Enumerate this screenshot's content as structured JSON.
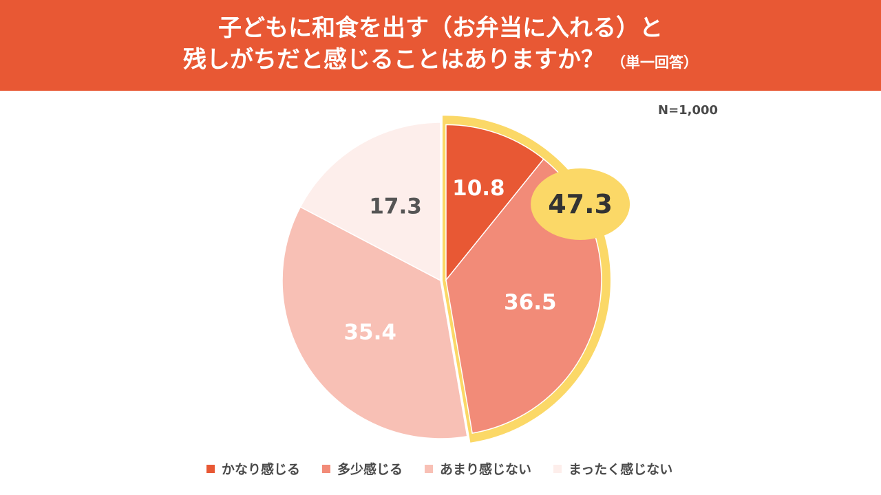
{
  "title": {
    "line1": "子どもに和食を出す（お弁当に入れる）と",
    "line2": "残しがちだと感じることはありますか？",
    "note": "（単一回答）"
  },
  "n_label": "N=1,000",
  "chart_data": {
    "type": "pie",
    "unit": "%",
    "slices": [
      {
        "label": "かなり感じる",
        "value": 10.8,
        "display": "10.8",
        "color": "#e85834",
        "text_color": "#ffffff"
      },
      {
        "label": "多少感じる",
        "value": 36.5,
        "display": "36.5",
        "color": "#f28b78",
        "text_color": "#ffffff"
      },
      {
        "label": "あまり感じない",
        "value": 35.4,
        "display": "35.4",
        "color": "#f8c0b5",
        "text_color": "#ffffff"
      },
      {
        "label": "まったく感じない",
        "value": 17.3,
        "display": "17.3",
        "color": "#fdeeeb",
        "text_color": "#555555"
      }
    ],
    "highlight": {
      "slices": [
        "かなり感じる",
        "多少感じる"
      ],
      "total": 47.3,
      "display": "47.3",
      "color": "#fbd867"
    },
    "legend_position": "bottom"
  },
  "legend": [
    {
      "label": "かなり感じる",
      "color": "#e85834"
    },
    {
      "label": "多少感じる",
      "color": "#f28b78"
    },
    {
      "label": "あまり感じない",
      "color": "#f8c0b5"
    },
    {
      "label": "まったく感じない",
      "color": "#fdeeeb"
    }
  ]
}
